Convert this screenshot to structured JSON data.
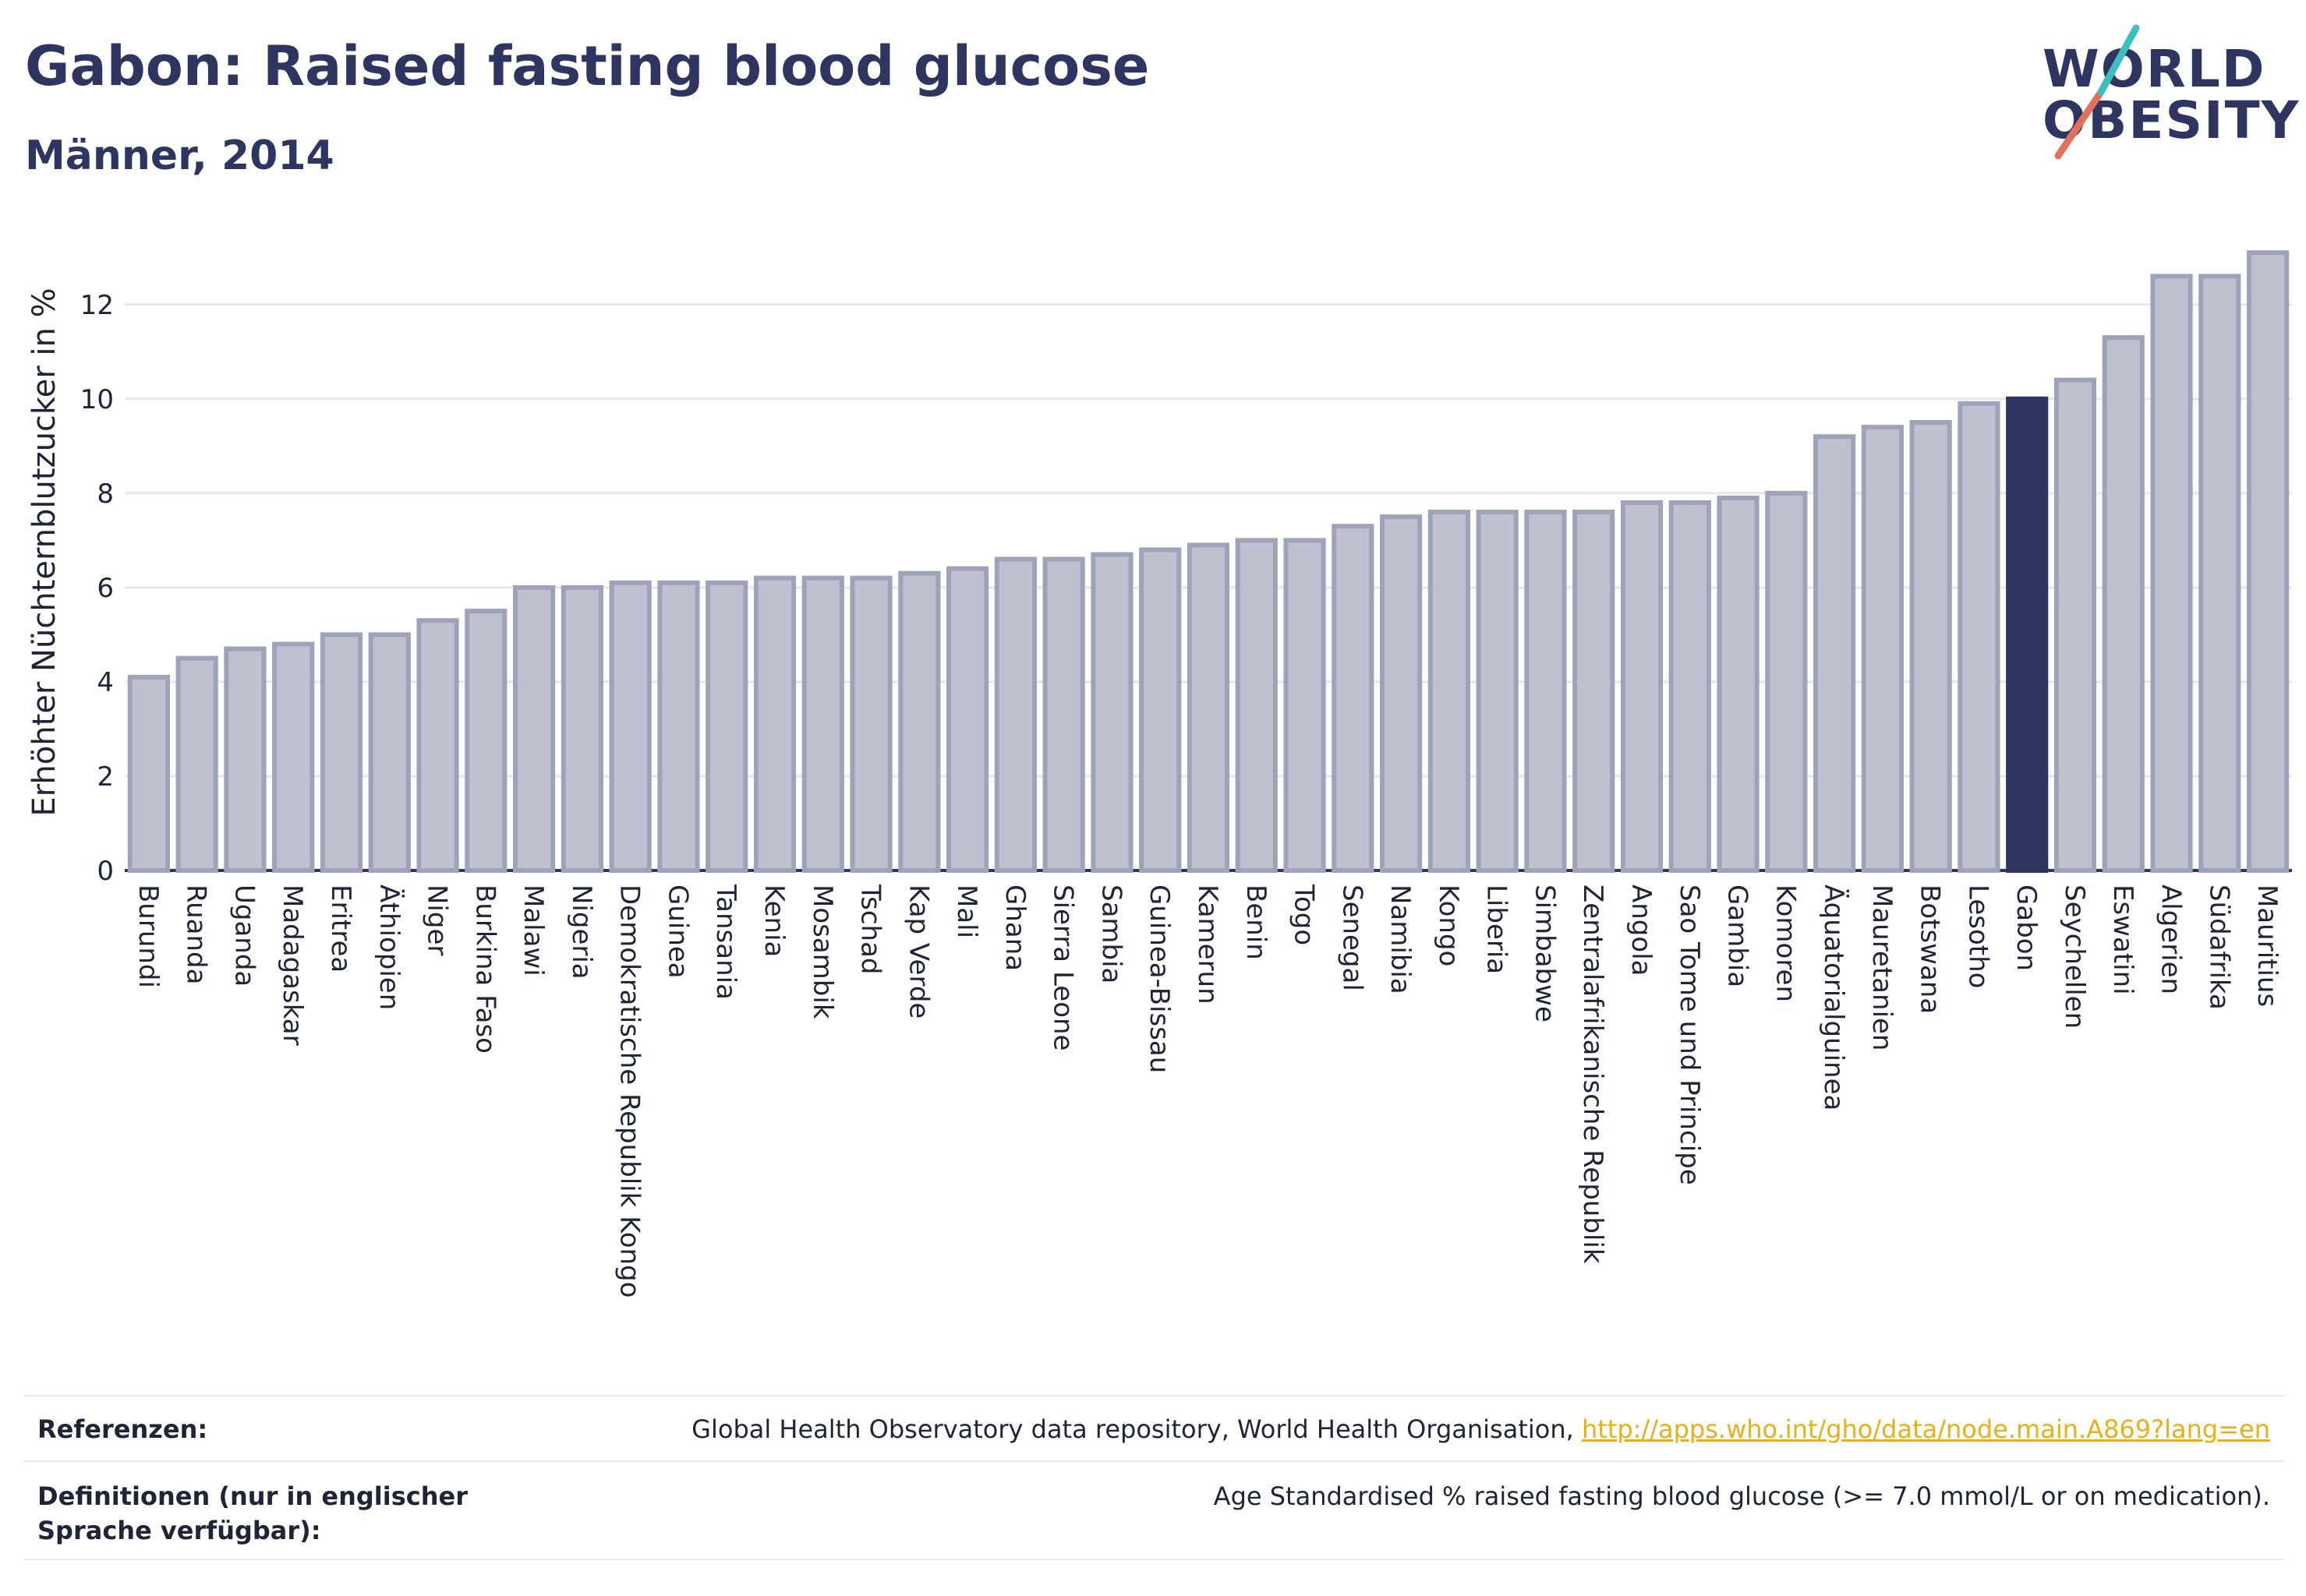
{
  "header": {
    "title": "Gabon: Raised fasting blood glucose",
    "subtitle": "Männer, 2014"
  },
  "logo": {
    "line1": "WORLD",
    "line2": "OBESITY",
    "colors": {
      "text": "#2d3560",
      "slash_red": "#e2705b",
      "slash_teal": "#3bbfc0"
    }
  },
  "chart_data": {
    "type": "bar",
    "ylabel": "Erhöhter Nüchternblutzucker in %",
    "ylim": [
      0,
      13.5
    ],
    "yticks": [
      0,
      2,
      4,
      6,
      8,
      10,
      12
    ],
    "grid": true,
    "highlight": "Gabon",
    "colors": {
      "bar": "#bdc1d0",
      "bar_border": "#9ea3b9",
      "highlight": "#2d3560"
    },
    "categories": [
      "Burundi",
      "Ruanda",
      "Uganda",
      "Madagaskar",
      "Eritrea",
      "Äthiopien",
      "Niger",
      "Burkina Faso",
      "Malawi",
      "Nigeria",
      "Demokratische Republik Kongo",
      "Guinea",
      "Tansania",
      "Kenia",
      "Mosambik",
      "Tschad",
      "Kap Verde",
      "Mali",
      "Ghana",
      "Sierra Leone",
      "Sambia",
      "Guinea-Bissau",
      "Kamerun",
      "Benin",
      "Togo",
      "Senegal",
      "Namibia",
      "Kongo",
      "Liberia",
      "Simbabwe",
      "Zentralafrikanische Republik",
      "Angola",
      "Sao Tome und Principe",
      "Gambia",
      "Komoren",
      "Äquatorialguinea",
      "Mauretanien",
      "Botswana",
      "Lesotho",
      "Gabon",
      "Seychellen",
      "Eswatini",
      "Algerien",
      "Südafrika",
      "Mauritius"
    ],
    "values": [
      4.1,
      4.5,
      4.7,
      4.8,
      5.0,
      5.0,
      5.3,
      5.5,
      6.0,
      6.0,
      6.1,
      6.1,
      6.1,
      6.2,
      6.2,
      6.2,
      6.3,
      6.4,
      6.6,
      6.6,
      6.7,
      6.8,
      6.9,
      7.0,
      7.0,
      7.3,
      7.5,
      7.6,
      7.6,
      7.6,
      7.6,
      7.8,
      7.8,
      7.9,
      8.0,
      9.2,
      9.4,
      9.5,
      9.9,
      10.0,
      10.4,
      11.3,
      12.6,
      12.6,
      13.1
    ]
  },
  "footer": {
    "references_label": "Referenzen:",
    "references_text": "Global Health Observatory data repository, World Health Organisation, ",
    "references_link": "http://apps.who.int/gho/data/node.main.A869?lang=en",
    "definitions_label": "Definitionen (nur in englischer Sprache verfügbar):",
    "definitions_text": "Age Standardised % raised fasting blood glucose (>= 7.0 mmol/L or on medication)."
  }
}
